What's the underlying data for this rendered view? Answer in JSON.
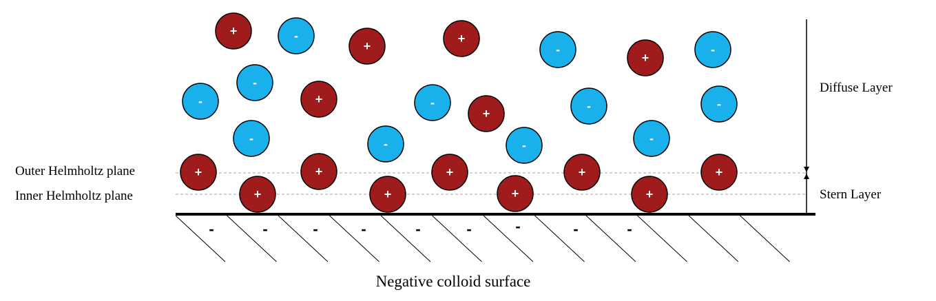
{
  "labels": {
    "outer_plane": "Outer Helmholtz plane",
    "inner_plane": "Inner Helmholtz plane",
    "diffuse_layer": "Diffuse Layer",
    "stern_layer": "Stern Layer",
    "surface": "Negative colloid surface"
  },
  "ion_signs": {
    "cation": "+",
    "anion": "-"
  },
  "surface_charge_sign": "-",
  "colors": {
    "cation_fill": "#a01c1c",
    "anion_fill": "#1ab0ec",
    "outline": "#000000",
    "plane_line": "#a6a6a6"
  }
}
